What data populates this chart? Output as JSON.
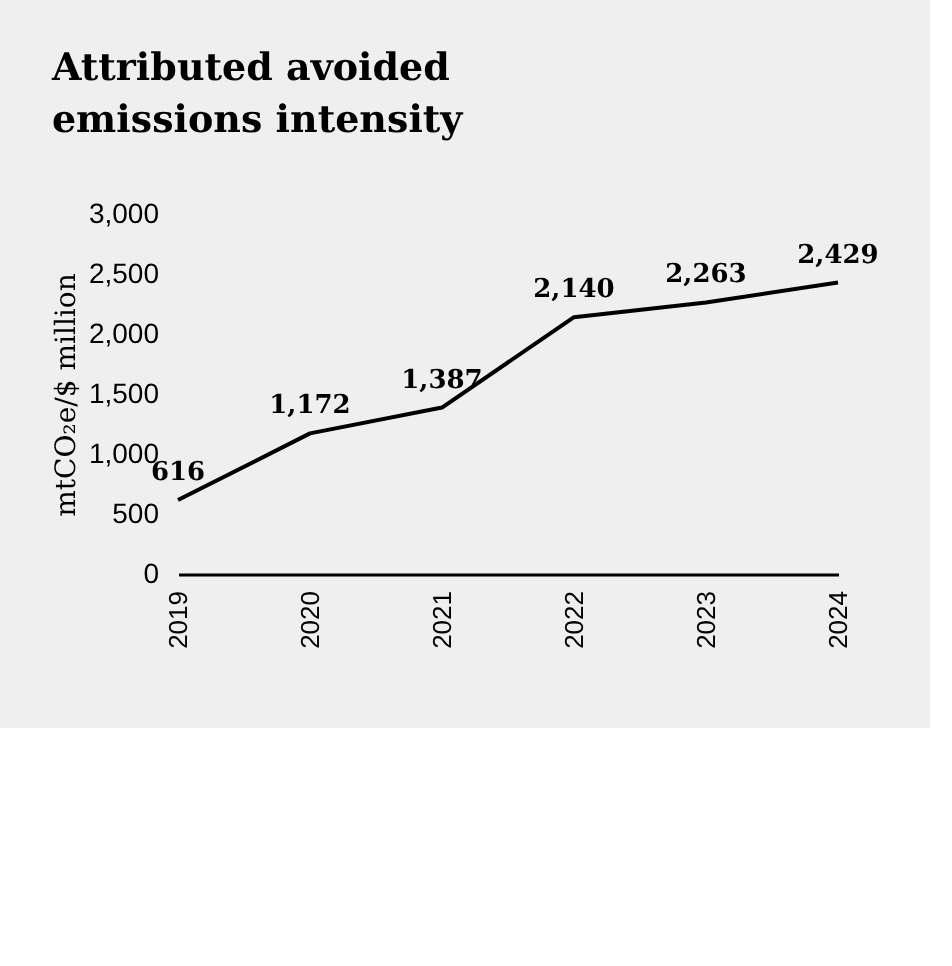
{
  "chart_data": {
    "type": "line",
    "title": "Attributed avoided emissions intensity",
    "ylabel": "mtCO₂e/$ million",
    "categories": [
      "2019",
      "2020",
      "2021",
      "2022",
      "2023",
      "2024"
    ],
    "series": [
      {
        "color": "#000000",
        "values": [
          616,
          1172,
          1387,
          2140,
          2263,
          2429
        ],
        "value_labels": [
          "616",
          "1,172",
          "1,387",
          "2,140",
          "2,263",
          "2,429"
        ]
      }
    ],
    "ylim": [
      0,
      3000
    ],
    "yticks": [
      0,
      500,
      {
        "value": 1000,
        "label": "1,000"
      },
      {
        "value": 1500,
        "label": "1,500"
      },
      {
        "value": 2000,
        "label": "2,000"
      },
      {
        "value": 2500,
        "label": "2,500"
      },
      {
        "value": 3000,
        "label": "3,000"
      }
    ],
    "grid": false,
    "legend": false,
    "marker": "none",
    "line_style": "solid"
  }
}
